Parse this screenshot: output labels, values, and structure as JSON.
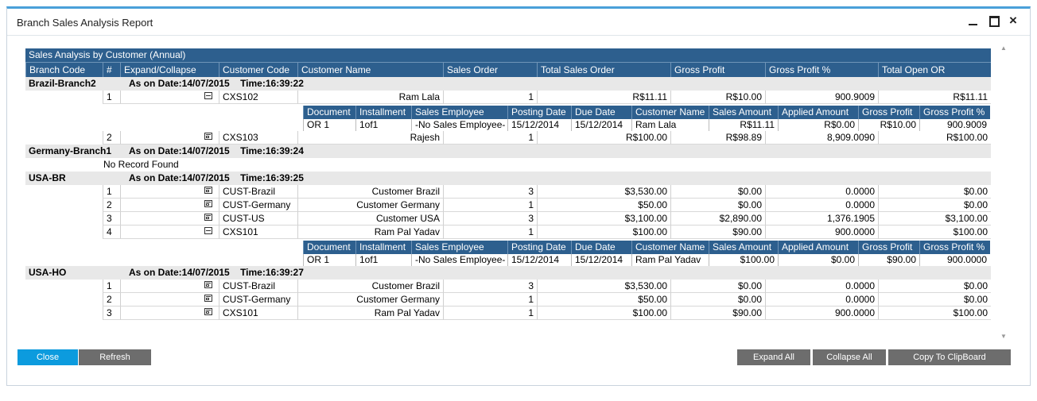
{
  "window": {
    "title": "Branch Sales Analysis Report",
    "close_glyph": "×"
  },
  "report": {
    "band_title": "Sales Analysis by Customer (Annual)",
    "columns": [
      "Branch Code",
      "#",
      "Expand/Collapse",
      "Customer Code",
      "Customer Name",
      "Sales Order",
      "Total Sales Order",
      "Gross Profit",
      "Gross Profit %",
      "Total Open OR"
    ],
    "detail_columns": [
      "Document",
      "Installment",
      "Sales Employee",
      "Posting Date",
      "Due Date",
      "Customer Name",
      "Sales Amount",
      "Applied Amount",
      "Gross Profit",
      "Gross Profit %"
    ],
    "groups": [
      {
        "branch": "Brazil-Branch2",
        "as_on": "As on Date:14/07/2015    Time:16:39:22",
        "rows": [
          {
            "num": "1",
            "state": "collapse",
            "code": "CXS102",
            "name": "Ram Lala",
            "orders": "1",
            "total": "R$11.11",
            "gp": "R$10.00",
            "gpp": "900.9009",
            "open": "R$11.11",
            "detail": {
              "document": "OR 1",
              "installment": "1of1",
              "employee": "-No Sales Employee-",
              "posting": "15/12/2014",
              "due": "15/12/2014",
              "customer": "Ram Lala",
              "amount": "R$11.11",
              "applied": "R$0.00",
              "gp": "R$10.00",
              "gpp": "900.9009"
            }
          },
          {
            "num": "2",
            "state": "expand",
            "code": "CXS103",
            "name": "Rajesh",
            "orders": "1",
            "total": "R$100.00",
            "gp": "R$98.89",
            "gpp": "8,909.0090",
            "open": "R$100.00"
          }
        ]
      },
      {
        "branch": "Germany-Branch1",
        "as_on": "As on Date:14/07/2015    Time:16:39:24",
        "no_record": "No Record Found",
        "rows": []
      },
      {
        "branch": "USA-BR",
        "as_on": "As on Date:14/07/2015    Time:16:39:25",
        "rows": [
          {
            "num": "1",
            "state": "expand",
            "code": "CUST-Brazil",
            "name": "Customer Brazil",
            "orders": "3",
            "total": "$3,530.00",
            "gp": "$0.00",
            "gpp": "0.0000",
            "open": "$0.00"
          },
          {
            "num": "2",
            "state": "expand",
            "code": "CUST-Germany",
            "name": "Customer Germany",
            "orders": "1",
            "total": "$50.00",
            "gp": "$0.00",
            "gpp": "0.0000",
            "open": "$0.00"
          },
          {
            "num": "3",
            "state": "expand",
            "code": "CUST-US",
            "name": "Customer USA",
            "orders": "3",
            "total": "$3,100.00",
            "gp": "$2,890.00",
            "gpp": "1,376.1905",
            "open": "$3,100.00"
          },
          {
            "num": "4",
            "state": "collapse",
            "code": "CXS101",
            "name": "Ram Pal Yadav",
            "orders": "1",
            "total": "$100.00",
            "gp": "$90.00",
            "gpp": "900.0000",
            "open": "$100.00",
            "detail": {
              "document": "OR 1",
              "installment": "1of1",
              "employee": "-No Sales Employee-",
              "posting": "15/12/2014",
              "due": "15/12/2014",
              "customer": "Ram Pal Yadav",
              "amount": "$100.00",
              "applied": "$0.00",
              "gp": "$90.00",
              "gpp": "900.0000"
            }
          }
        ]
      },
      {
        "branch": "USA-HO",
        "as_on": "As on Date:14/07/2015    Time:16:39:27",
        "rows": [
          {
            "num": "1",
            "state": "expand",
            "code": "CUST-Brazil",
            "name": "Customer Brazil",
            "orders": "3",
            "total": "$3,530.00",
            "gp": "$0.00",
            "gpp": "0.0000",
            "open": "$0.00"
          },
          {
            "num": "2",
            "state": "expand",
            "code": "CUST-Germany",
            "name": "Customer Germany",
            "orders": "1",
            "total": "$50.00",
            "gp": "$0.00",
            "gpp": "0.0000",
            "open": "$0.00"
          },
          {
            "num": "3",
            "state": "expand",
            "code": "CXS101",
            "name": "Ram Pal Yadav",
            "orders": "1",
            "total": "$100.00",
            "gp": "$90.00",
            "gpp": "900.0000",
            "open": "$100.00"
          }
        ]
      }
    ]
  },
  "buttons": {
    "close": "Close",
    "refresh": "Refresh",
    "expand_all": "Expand All",
    "collapse_all": "Collapse All",
    "copy": "Copy To ClipBoard"
  },
  "scrollbar": {
    "up": "▲",
    "down": "▼"
  },
  "colors": {
    "header": "#2d5f8e",
    "accent": "#0c9bde",
    "button": "#6d6d6d"
  }
}
